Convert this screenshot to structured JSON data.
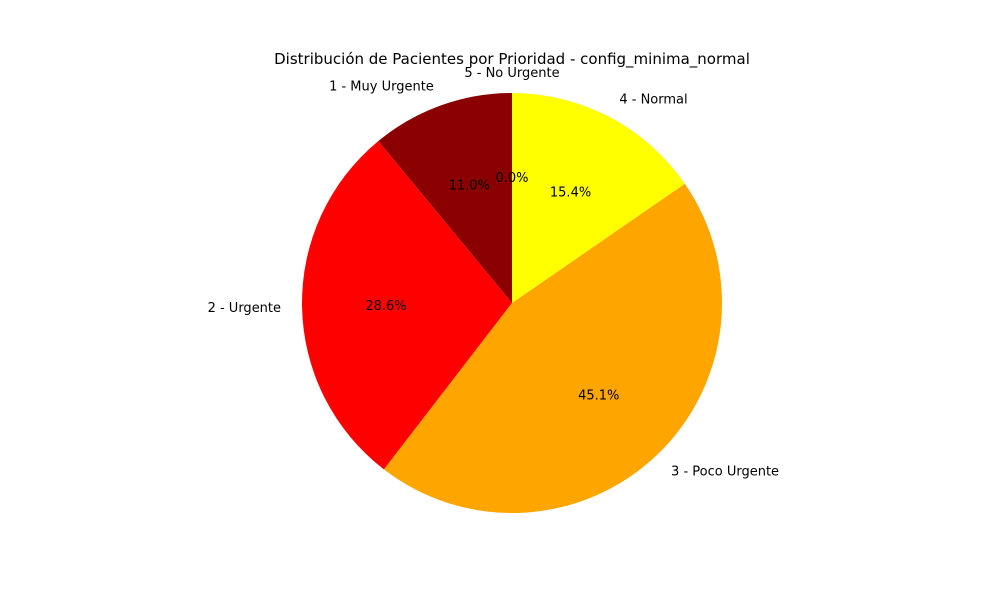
{
  "chart_data": {
    "type": "pie",
    "title": "Distribución de Pacientes por Prioridad - config_minima_normal",
    "start_angle_deg": 90,
    "direction": "counterclockwise",
    "slices": [
      {
        "label": "1 - Muy Urgente",
        "value": 11.0,
        "pct_label": "11.0%",
        "color": "#8b0000"
      },
      {
        "label": "2 - Urgente",
        "value": 28.6,
        "pct_label": "28.6%",
        "color": "#ff0000"
      },
      {
        "label": "3 - Poco Urgente",
        "value": 45.1,
        "pct_label": "45.1%",
        "color": "#ffa500"
      },
      {
        "label": "4 - Normal",
        "value": 15.4,
        "pct_label": "15.4%",
        "color": "#ffff00"
      },
      {
        "label": "5 - No Urgente",
        "value": 0.0,
        "pct_label": "0.0%",
        "color": "#00ff00"
      }
    ]
  }
}
